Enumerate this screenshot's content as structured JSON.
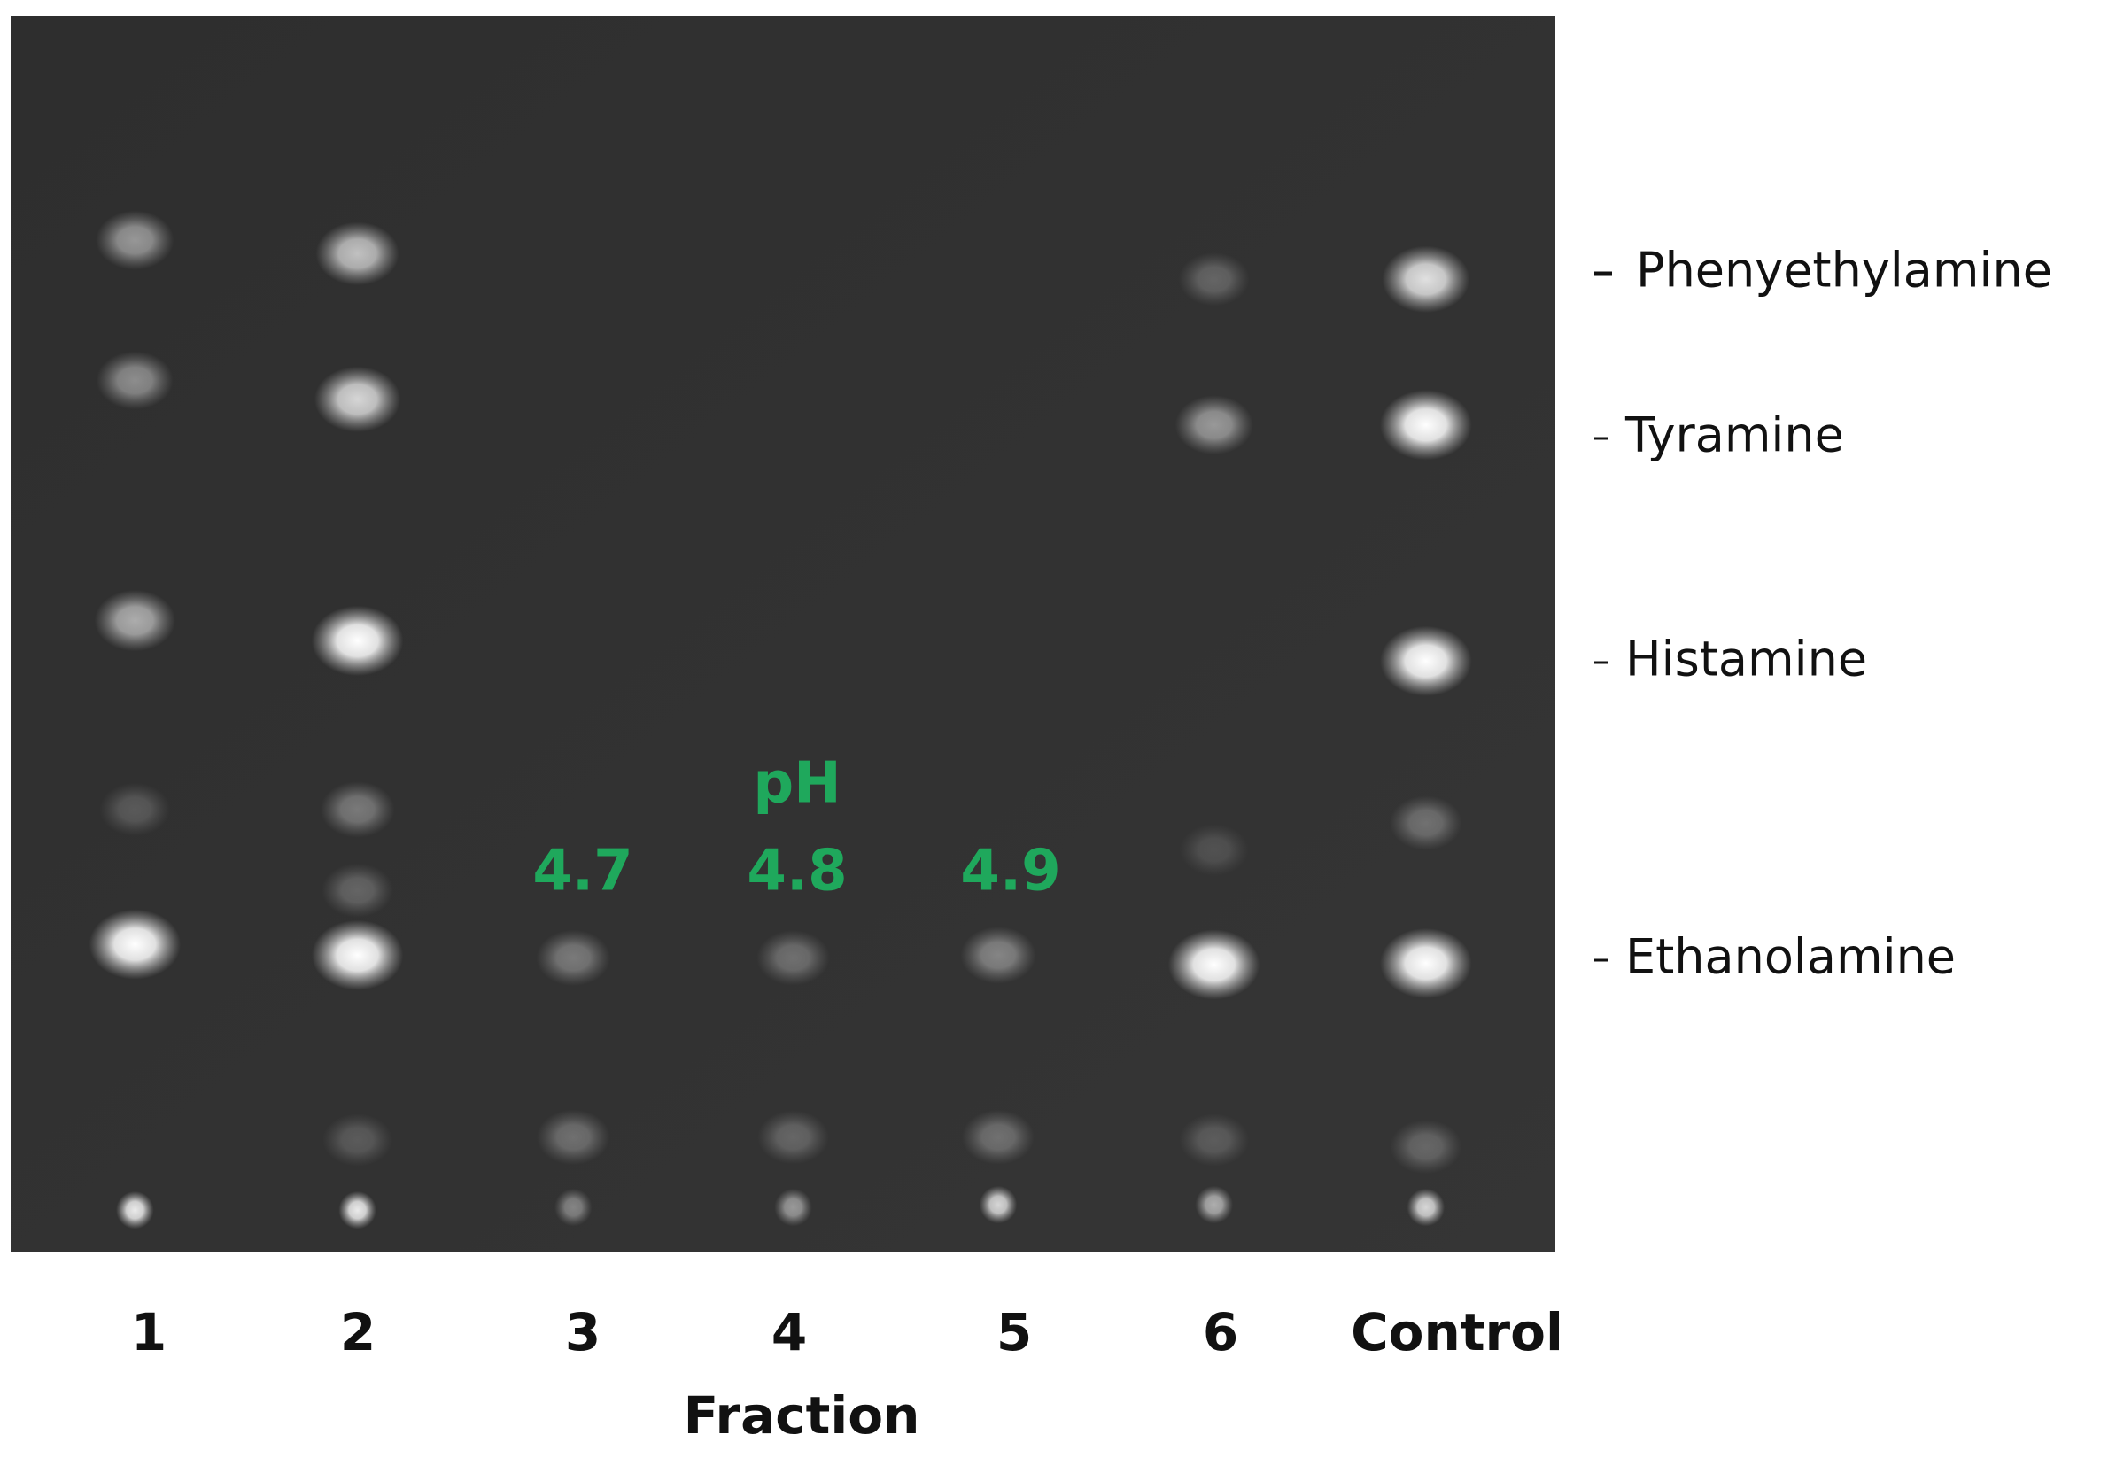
{
  "lanes": [
    "1",
    "2",
    "3",
    "4",
    "5",
    "6",
    "Control"
  ],
  "x_label": "Fraction",
  "ph": {
    "title": "pH",
    "values": [
      "4.7",
      "4.8",
      "4.9"
    ]
  },
  "compounds": [
    "Phenyethylamine",
    "Tyramine",
    "Histamine",
    "Ethanolamine"
  ]
}
